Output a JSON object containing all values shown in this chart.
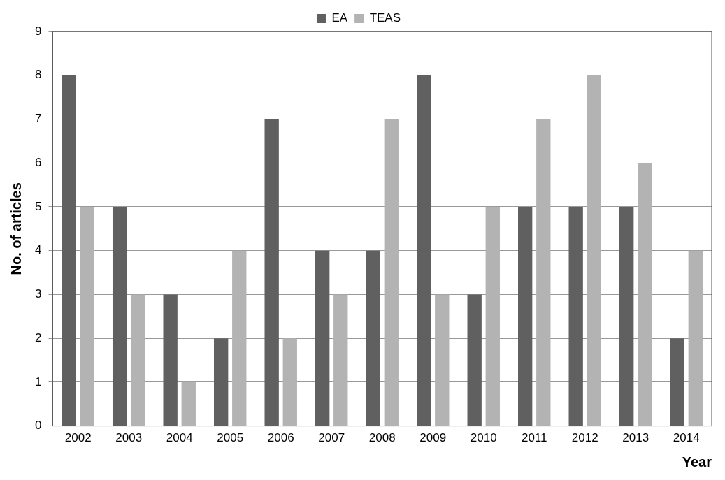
{
  "chart_data": {
    "type": "bar",
    "xlabel": "Year",
    "ylabel": "No. of articles",
    "categories": [
      "2002",
      "2003",
      "2004",
      "2005",
      "2006",
      "2007",
      "2008",
      "2009",
      "2010",
      "2011",
      "2012",
      "2013",
      "2014"
    ],
    "series": [
      {
        "name": "EA",
        "color": "#606060",
        "values": [
          8,
          5,
          3,
          2,
          7,
          4,
          4,
          8,
          3,
          5,
          5,
          5,
          2
        ]
      },
      {
        "name": "TEAS",
        "color": "#b3b3b3",
        "values": [
          5,
          3,
          1,
          4,
          2,
          3,
          7,
          3,
          5,
          7,
          8,
          6,
          4
        ]
      }
    ],
    "ylim": [
      0,
      9
    ],
    "yticks": [
      0,
      1,
      2,
      3,
      4,
      5,
      6,
      7,
      8,
      9
    ],
    "grid": "y",
    "legend": "top"
  }
}
